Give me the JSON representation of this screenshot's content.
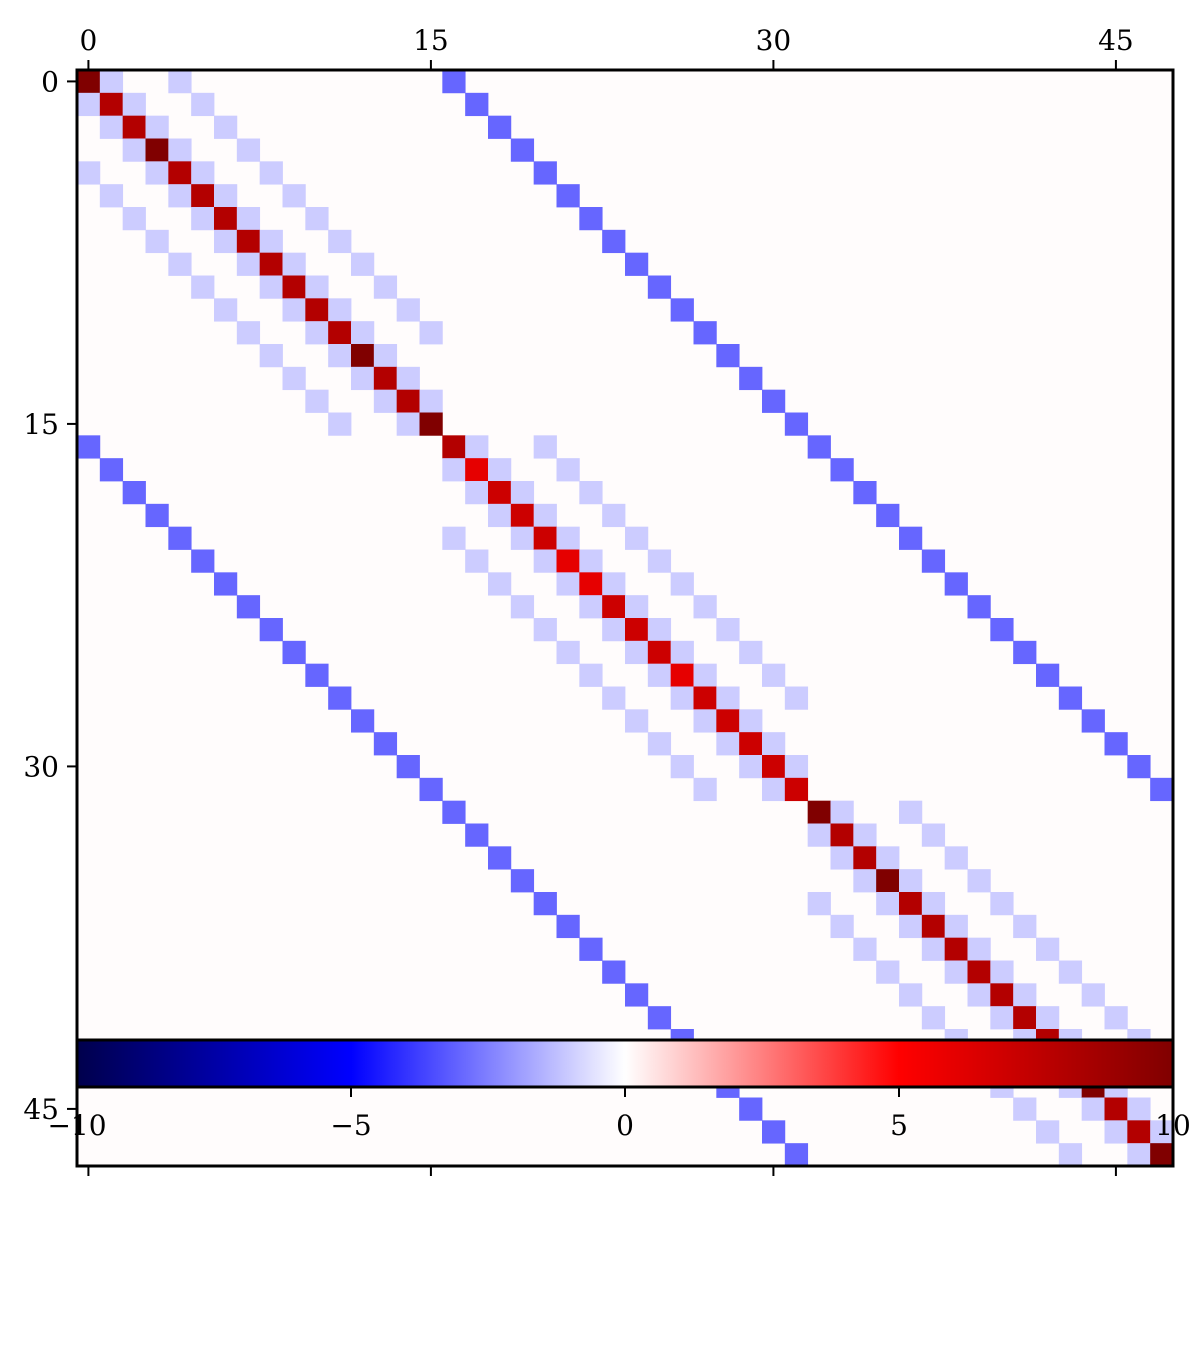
{
  "chart_data": {
    "type": "heatmap",
    "title": "",
    "xlabel": "",
    "ylabel": "",
    "n_rows": 48,
    "n_cols": 48,
    "x_ticks": [
      0,
      15,
      30,
      45
    ],
    "x_tick_labels": [
      "0",
      "15",
      "30",
      "45"
    ],
    "y_ticks": [
      0,
      15,
      30,
      45
    ],
    "y_tick_labels": [
      "0",
      "15",
      "30",
      "45"
    ],
    "x_tick_position": "top and bottom (labels on top)",
    "colormap": "seismic",
    "colormap_stops": [
      "#00004c",
      "#0000ff",
      "#ffffff",
      "#ff0000",
      "#800000"
    ],
    "vmin": -10,
    "vmax": 10,
    "background_value": 0,
    "block_size": 16,
    "blocks": [
      {
        "start": 0,
        "diag": [
          10,
          8,
          8,
          10,
          8,
          8,
          8,
          8,
          8,
          8,
          8,
          8,
          10,
          8,
          8,
          10
        ]
      },
      {
        "start": 16,
        "diag": [
          8,
          6,
          7,
          7,
          7,
          6,
          6,
          7,
          7,
          7,
          6,
          7,
          7,
          7,
          7,
          7
        ]
      },
      {
        "start": 32,
        "diag": [
          10,
          8,
          8,
          10,
          8,
          8,
          8,
          8,
          8,
          8,
          8,
          8,
          10,
          8,
          8,
          10
        ]
      }
    ],
    "intra_block_offsets": [
      1,
      4
    ],
    "intra_block_value": -1,
    "inter_block_offset": 16,
    "inter_block_value": -3,
    "grid": false,
    "colorbar": {
      "orientation": "horizontal",
      "placement": "bottom",
      "ticks": [
        -10,
        -5,
        0,
        5,
        10
      ],
      "tick_labels": [
        "−10",
        "−5",
        "0",
        "5",
        "10"
      ]
    }
  }
}
